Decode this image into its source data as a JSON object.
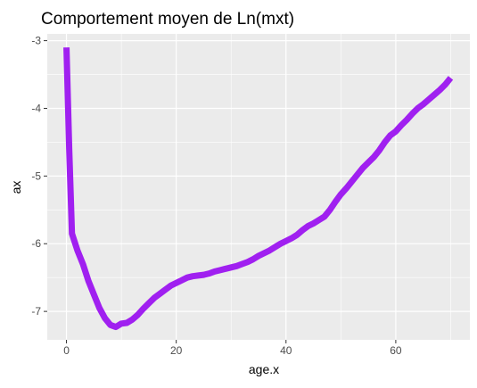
{
  "chart_data": {
    "type": "line",
    "title": "Comportement moyen de Ln(mxt)",
    "xlabel": "age.x",
    "ylabel": "ax",
    "xlim": [
      -3.5,
      73.5
    ],
    "ylim": [
      -7.42,
      -2.9
    ],
    "x_ticks": [
      0,
      20,
      40,
      60
    ],
    "x_tick_labels": [
      "0",
      "20",
      "40",
      "60"
    ],
    "y_ticks": [
      -7,
      -6,
      -5,
      -4,
      -3
    ],
    "y_tick_labels": [
      "-7",
      "-6",
      "-5",
      "-4",
      "-3"
    ],
    "grid": true,
    "panel_background": "#ebebeb",
    "grid_color": "#ffffff",
    "line_color": "#a020f0",
    "series": [
      {
        "x": [
          0,
          0.5,
          1,
          2,
          3,
          4,
          5,
          6,
          7,
          8,
          9,
          10,
          11,
          12,
          13,
          14,
          15,
          16,
          17,
          18,
          19,
          20,
          21,
          22,
          23,
          24,
          25,
          26,
          27,
          28,
          29,
          30,
          31,
          32,
          33,
          34,
          35,
          36,
          37,
          38,
          39,
          40,
          41,
          42,
          43,
          44,
          45,
          46,
          47,
          48,
          49,
          50,
          51,
          52,
          53,
          54,
          55,
          56,
          57,
          58,
          59,
          60,
          61,
          62,
          63,
          64,
          65,
          66,
          67,
          68,
          69,
          70
        ],
        "y": [
          -3.1,
          -4.6,
          -5.85,
          -6.1,
          -6.3,
          -6.55,
          -6.75,
          -6.95,
          -7.1,
          -7.2,
          -7.23,
          -7.18,
          -7.17,
          -7.12,
          -7.05,
          -6.96,
          -6.88,
          -6.8,
          -6.74,
          -6.68,
          -6.62,
          -6.58,
          -6.54,
          -6.5,
          -6.48,
          -6.47,
          -6.46,
          -6.44,
          -6.41,
          -6.39,
          -6.37,
          -6.35,
          -6.33,
          -6.3,
          -6.27,
          -6.23,
          -6.18,
          -6.14,
          -6.1,
          -6.05,
          -6.0,
          -5.96,
          -5.92,
          -5.87,
          -5.8,
          -5.74,
          -5.7,
          -5.65,
          -5.6,
          -5.5,
          -5.38,
          -5.27,
          -5.18,
          -5.08,
          -4.98,
          -4.88,
          -4.8,
          -4.72,
          -4.62,
          -4.5,
          -4.4,
          -4.34,
          -4.25,
          -4.17,
          -4.08,
          -4.0,
          -3.94,
          -3.87,
          -3.8,
          -3.73,
          -3.65,
          -3.55
        ]
      }
    ]
  }
}
